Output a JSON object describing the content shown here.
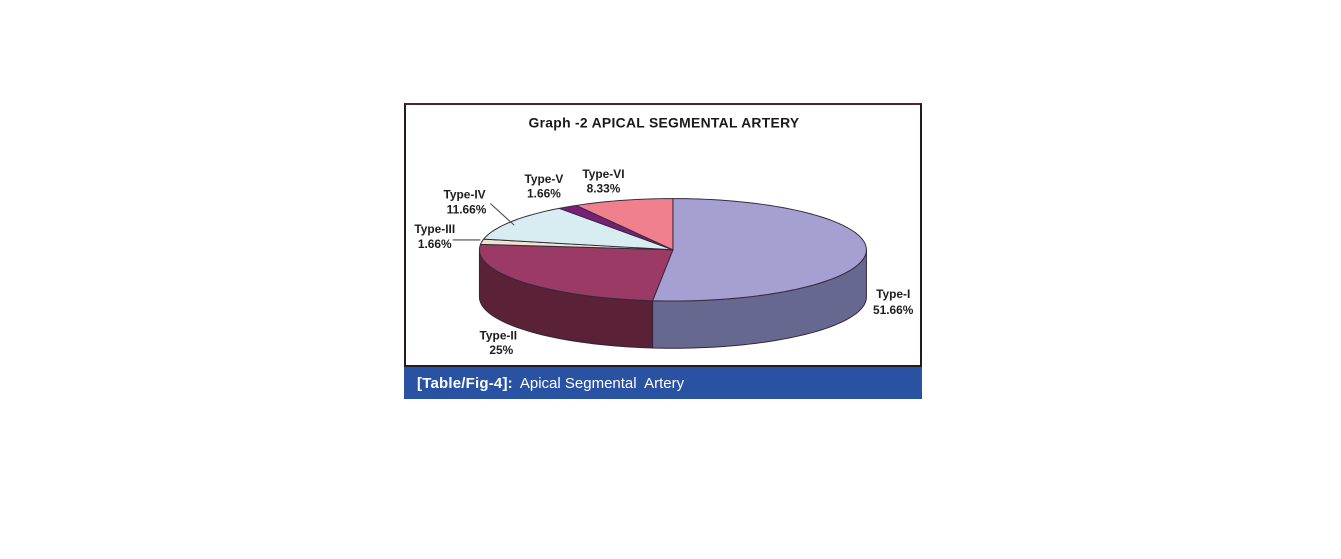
{
  "figure": {
    "caption_prefix": "[Table/Fig-4]:",
    "caption_text": "Apical Segmental  Artery",
    "caption_bg": "#2a52a3",
    "caption_color": "#ffffff"
  },
  "chart_data": {
    "type": "pie",
    "title": "Graph -2 APICAL SEGMENTAL ARTERY",
    "effect": "3d",
    "start_angle_deg": 0,
    "direction": "clockwise",
    "unit": "%",
    "legend": "none",
    "label_style": "category name and percent placed outside slices",
    "categories": [
      "Type-I",
      "Type-II",
      "Type-III",
      "Type-IV",
      "Type-V",
      "Type-VI"
    ],
    "values": [
      51.66,
      25,
      1.66,
      11.66,
      1.66,
      8.33
    ],
    "slices": [
      {
        "name": "Type-I",
        "pct_label": "51.66%",
        "value": 51.66,
        "color": "#a6a0d2",
        "side_color": "#676890"
      },
      {
        "name": "Type-II",
        "pct_label": "25%",
        "value": 25.0,
        "color": "#9c3a66",
        "side_color": "#5a2137"
      },
      {
        "name": "Type-III",
        "pct_label": "1.66%",
        "value": 1.66,
        "color": "#ece6cf",
        "side_color": "#b5ae92"
      },
      {
        "name": "Type-IV",
        "pct_label": "11.66%",
        "value": 11.66,
        "color": "#d8edf1",
        "side_color": "#9fb6ba"
      },
      {
        "name": "Type-V",
        "pct_label": "1.66%",
        "value": 1.66,
        "color": "#7a1f78",
        "side_color": "#471245"
      },
      {
        "name": "Type-VI",
        "pct_label": "8.33%",
        "value": 8.33,
        "color": "#ef808c",
        "side_color": "#b05560"
      }
    ]
  }
}
